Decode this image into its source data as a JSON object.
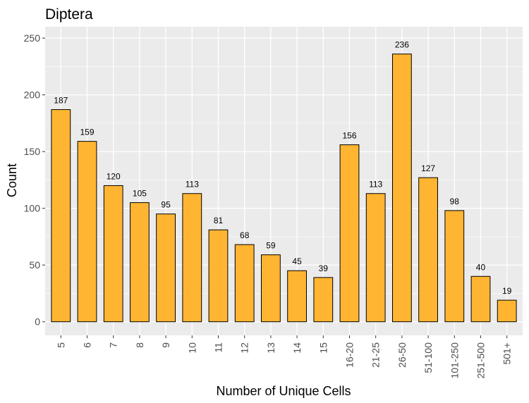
{
  "chart_data": {
    "type": "bar",
    "title": "Diptera",
    "xlabel": "Number of Unique Cells",
    "ylabel": "Count",
    "categories": [
      "5",
      "6",
      "7",
      "8",
      "9",
      "10",
      "11",
      "12",
      "13",
      "14",
      "15",
      "16-20",
      "21-25",
      "26-50",
      "51-100",
      "101-250",
      "251-500",
      "501+"
    ],
    "values": [
      187,
      159,
      120,
      105,
      95,
      113,
      81,
      68,
      59,
      45,
      39,
      156,
      113,
      236,
      127,
      98,
      40,
      19
    ],
    "data_labels": [
      "187",
      "159",
      "120",
      "105",
      "95",
      "113",
      "81",
      "68",
      "59",
      "45",
      "39",
      "156",
      "113",
      "236",
      "127",
      "98",
      "40",
      "19"
    ],
    "ylim": [
      -12,
      260
    ],
    "yticks": [
      0,
      50,
      100,
      150,
      200,
      250
    ],
    "ytick_labels": [
      "0",
      "50",
      "100",
      "150",
      "200",
      "250"
    ],
    "grid": true,
    "legend": "none",
    "colors": {
      "bar_fill": "#FFB531",
      "bar_stroke": "#000000",
      "panel_bg": "#EBEBEB",
      "grid": "#FFFFFF",
      "text": "#000000",
      "tick_text": "#4D4D4D",
      "tick_mark": "#333333"
    }
  }
}
